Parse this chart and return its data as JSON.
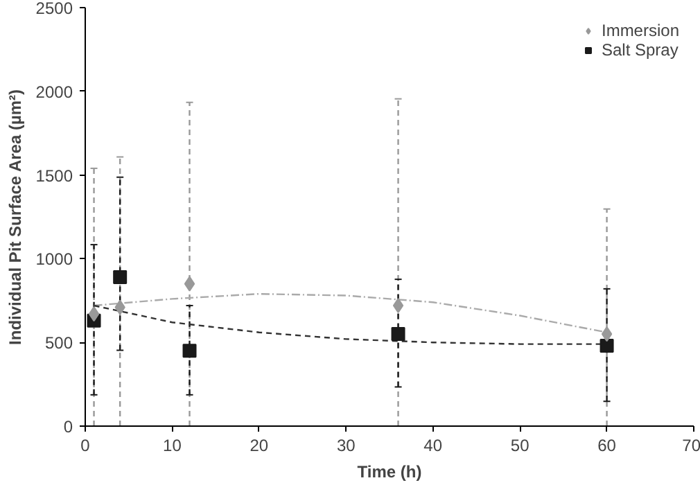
{
  "chart_data": {
    "type": "scatter",
    "xlabel": "Time (h)",
    "ylabel": "Individual Pit Surface Area (µm²)",
    "xlim": [
      0,
      70
    ],
    "xticks": [
      0,
      10,
      20,
      30,
      40,
      50,
      60,
      70
    ],
    "ylim": [
      0,
      2500
    ],
    "yticks": [
      0,
      500,
      1000,
      1500,
      2000,
      2500
    ],
    "grid": false,
    "legend": "top right",
    "series": [
      {
        "name": "Immersion",
        "color": "#999999",
        "marker": "diamond",
        "x": [
          1,
          4,
          12,
          36,
          60
        ],
        "values": [
          670,
          710,
          850,
          720,
          550
        ],
        "errors": [
          [
            0,
            1540
          ],
          [
            0,
            1608
          ],
          [
            0,
            1934
          ],
          [
            0,
            1955
          ],
          [
            0,
            1297
          ]
        ],
        "line_style": "dashed"
      },
      {
        "name": "Salt Spray",
        "color": "#1a1a1a",
        "marker": "square",
        "x": [
          1,
          4,
          12,
          36,
          60
        ],
        "values": [
          630,
          890,
          450,
          550,
          480
        ],
        "errors": [
          [
            187,
            1084
          ],
          [
            453,
            1487
          ],
          [
            187,
            720
          ],
          [
            234,
            877
          ],
          [
            148,
            820
          ]
        ],
        "line_style": "dashed"
      },
      {
        "type": "line",
        "color": "#aaaaaa",
        "line_style": "dashdot",
        "x": [
          1,
          10,
          20,
          30,
          40,
          50,
          60
        ],
        "values": [
          720,
          760,
          790,
          780,
          740,
          660,
          560
        ]
      },
      {
        "type": "line",
        "color": "#333333",
        "line_style": "dashed",
        "x": [
          1,
          10,
          20,
          30,
          40,
          50,
          60
        ],
        "values": [
          720,
          620,
          560,
          520,
          500,
          490,
          490
        ]
      }
    ]
  }
}
